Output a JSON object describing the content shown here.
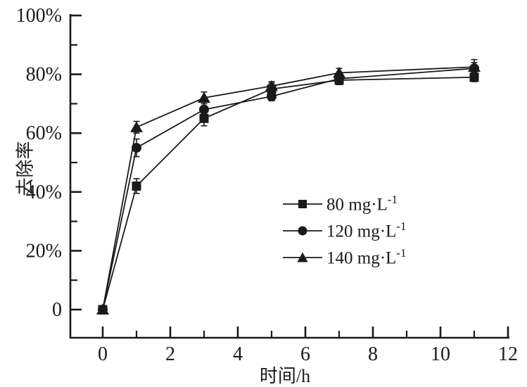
{
  "figure": {
    "background": "#ffffff",
    "ink_color": "#1a1a1a"
  },
  "chart_data": {
    "type": "line",
    "title": "",
    "xlabel": "时间/h",
    "ylabel": "去除率",
    "xlim": [
      0,
      12
    ],
    "ylim": [
      0,
      100
    ],
    "grid": false,
    "legend_position": "center-right",
    "x": [
      0,
      1,
      3,
      5,
      7,
      11
    ],
    "xticks": [
      {
        "v": 0,
        "label": "0"
      },
      {
        "v": 2,
        "label": "2"
      },
      {
        "v": 4,
        "label": "4"
      },
      {
        "v": 6,
        "label": "6"
      },
      {
        "v": 8,
        "label": "8"
      },
      {
        "v": 10,
        "label": "10"
      },
      {
        "v": 12,
        "label": "12"
      }
    ],
    "xticks_minor": [
      1,
      3,
      5,
      7,
      9,
      11
    ],
    "yticks": [
      {
        "v": 0,
        "label": "0"
      },
      {
        "v": 20,
        "label": "20%"
      },
      {
        "v": 40,
        "label": "40%"
      },
      {
        "v": 60,
        "label": "60%"
      },
      {
        "v": 80,
        "label": "80%"
      },
      {
        "v": 100,
        "label": "100%"
      }
    ],
    "yticks_minor": [
      10,
      30,
      50,
      70,
      90
    ],
    "series": [
      {
        "name": "80 mg·L-1",
        "label_base": "80 mg·L",
        "label_sup": "-1",
        "marker": "square",
        "values": [
          0,
          42,
          65,
          75,
          78,
          79
        ],
        "errors": [
          0,
          2.5,
          2.5,
          2,
          1.5,
          1.5
        ]
      },
      {
        "name": "120 mg·L-1",
        "label_base": "120 mg·L",
        "label_sup": "-1",
        "marker": "circle",
        "values": [
          0,
          55,
          68,
          72.5,
          78.5,
          82
        ],
        "errors": [
          0,
          3,
          2,
          1.5,
          1.5,
          2
        ]
      },
      {
        "name": "140 mg·L-1",
        "label_base": "140 mg·L",
        "label_sup": "-1",
        "marker": "triangle",
        "values": [
          0,
          62,
          72,
          76,
          80.5,
          82.5
        ],
        "errors": [
          0,
          2,
          2,
          1.5,
          1.5,
          2.5
        ]
      }
    ]
  }
}
